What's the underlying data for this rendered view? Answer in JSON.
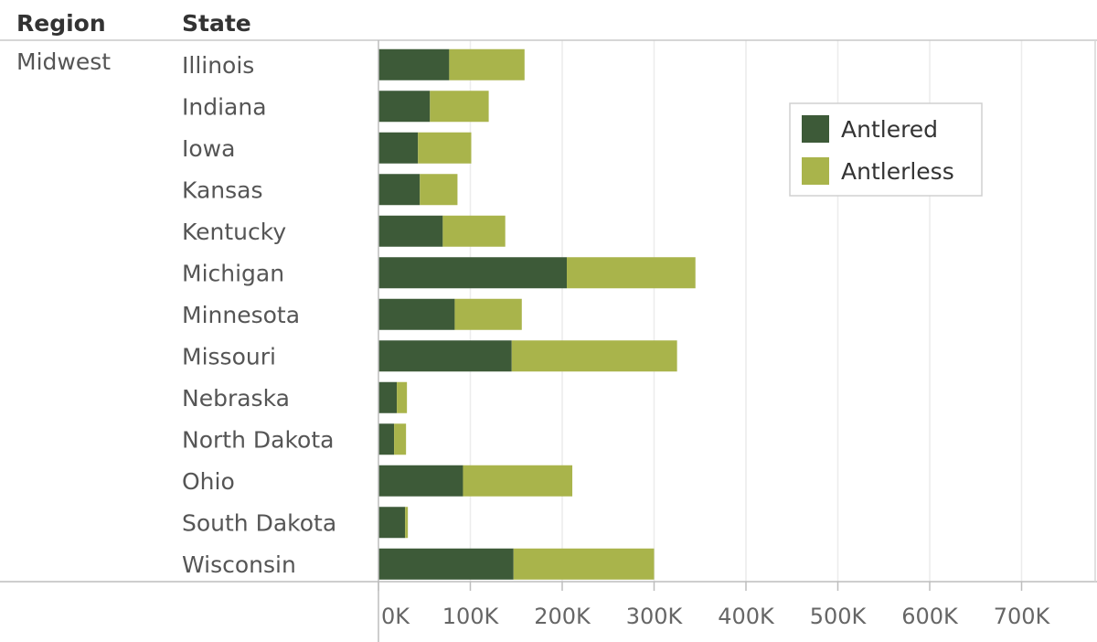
{
  "chart_data": {
    "type": "bar",
    "orientation": "horizontal",
    "stacked": true,
    "headers": {
      "region": "Region",
      "state": "State"
    },
    "region": "Midwest",
    "categories": [
      "Illinois",
      "Indiana",
      "Iowa",
      "Kansas",
      "Kentucky",
      "Michigan",
      "Minnesota",
      "Missouri",
      "Nebraska",
      "North Dakota",
      "Ohio",
      "South Dakota",
      "Wisconsin"
    ],
    "series": [
      {
        "name": "Antlered",
        "color": "#3d5a38",
        "values": [
          77000,
          56000,
          43000,
          45000,
          70000,
          205000,
          83000,
          145000,
          20000,
          17000,
          92000,
          29000,
          147000
        ]
      },
      {
        "name": "Antlerless",
        "color": "#a9b44b",
        "values": [
          82000,
          64000,
          58000,
          41000,
          68000,
          140000,
          73000,
          180000,
          11000,
          13000,
          119000,
          3000,
          153000
        ]
      }
    ],
    "xlim": [
      0,
      780000
    ],
    "xticks": [
      0,
      100000,
      200000,
      300000,
      400000,
      500000,
      600000,
      700000
    ],
    "xtick_labels": [
      "0K",
      "100K",
      "200K",
      "300K",
      "400K",
      "500K",
      "600K",
      "700K"
    ],
    "grid": true,
    "legend": {
      "position": "top-right",
      "entries": [
        "Antlered",
        "Antlerless"
      ]
    }
  }
}
